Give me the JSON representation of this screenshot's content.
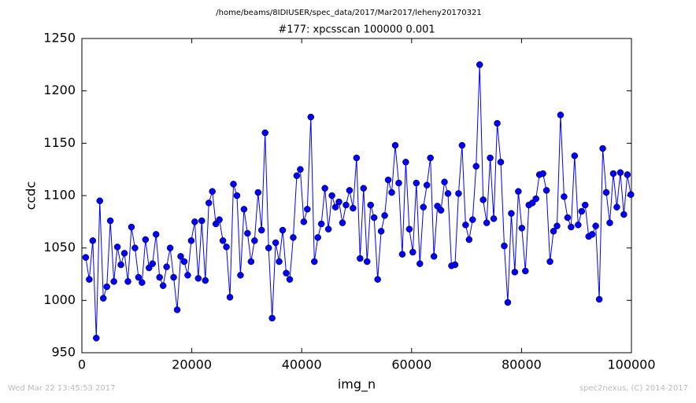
{
  "chart_data": {
    "type": "line",
    "suptitle": "/home/beams/8IDIUSER/spec_data/2017/Mar2017/leheny20170321",
    "title": "#177: xpcsscan 100000 0.001",
    "xlabel": "img_n",
    "ylabel": "ccdc",
    "footer_left": "Wed Mar 22 13:45:53 2017",
    "footer_right": "spec2nexus, (C) 2014-2017",
    "color": "#0000ff",
    "marker": "o",
    "xlim": [
      0,
      100000
    ],
    "xticks": [
      0,
      20000,
      40000,
      60000,
      80000,
      100000
    ],
    "ylim": [
      950,
      1250
    ],
    "yticks": [
      950,
      1000,
      1050,
      1100,
      1150,
      1200,
      1250
    ],
    "x": [
      700,
      1340,
      1980,
      2620,
      3260,
      3900,
      4540,
      5180,
      5820,
      6460,
      7100,
      7740,
      8380,
      9020,
      9660,
      10300,
      10940,
      11580,
      12220,
      12860,
      13500,
      14140,
      14780,
      15420,
      16060,
      16700,
      17340,
      17980,
      18620,
      19260,
      19900,
      20540,
      21180,
      21820,
      22460,
      23100,
      23740,
      24380,
      25020,
      25660,
      26300,
      26940,
      27580,
      28220,
      28860,
      29500,
      30140,
      30780,
      31420,
      32060,
      32700,
      33340,
      33980,
      34620,
      35260,
      35900,
      36540,
      37180,
      37820,
      38460,
      39100,
      39740,
      40380,
      41020,
      41660,
      42300,
      42940,
      43580,
      44220,
      44860,
      45500,
      46140,
      46780,
      47420,
      48060,
      48700,
      49340,
      49980,
      50620,
      51260,
      51900,
      52540,
      53180,
      53820,
      54460,
      55100,
      55740,
      56380,
      57020,
      57660,
      58300,
      58940,
      59580,
      60220,
      60860,
      61500,
      62140,
      62780,
      63420,
      64060,
      64700,
      65340,
      65980,
      66620,
      67260,
      67900,
      68540,
      69180,
      69820,
      70460,
      71100,
      71740,
      72380,
      73020,
      73660,
      74300,
      74940,
      75580,
      76220,
      76860,
      77500,
      78140,
      78780,
      79420,
      80060,
      80700,
      81340,
      81980,
      82620,
      83260,
      83900,
      84540,
      85180,
      85820,
      86460,
      87100,
      87740,
      88380,
      89020,
      89660,
      90300,
      90940,
      91580,
      92220,
      92860,
      93500,
      94140,
      94780,
      95420,
      96060,
      96700,
      97340,
      97980,
      98620,
      99260,
      99900
    ],
    "values": [
      1041,
      1020,
      1057,
      964,
      1095,
      1002,
      1013,
      1076,
      1018,
      1051,
      1034,
      1045,
      1018,
      1070,
      1050,
      1022,
      1017,
      1058,
      1031,
      1035,
      1063,
      1022,
      1014,
      1032,
      1050,
      1022,
      991,
      1042,
      1037,
      1024,
      1057,
      1075,
      1021,
      1076,
      1019,
      1093,
      1104,
      1073,
      1077,
      1057,
      1051,
      1003,
      1111,
      1100,
      1024,
      1087,
      1064,
      1037,
      1057,
      1103,
      1067,
      1160,
      1050,
      983,
      1055,
      1037,
      1067,
      1026,
      1020,
      1060,
      1119,
      1125,
      1075,
      1087,
      1175,
      1037,
      1060,
      1073,
      1107,
      1068,
      1100,
      1089,
      1094,
      1074,
      1091,
      1105,
      1088,
      1136,
      1040,
      1107,
      1037,
      1091,
      1079,
      1020,
      1066,
      1081,
      1115,
      1103,
      1148,
      1112,
      1044,
      1132,
      1068,
      1046,
      1112,
      1035,
      1089,
      1110,
      1136,
      1042,
      1090,
      1086,
      1113,
      1102,
      1033,
      1034,
      1102,
      1148,
      1072,
      1058,
      1077,
      1128,
      1225,
      1096,
      1074,
      1136,
      1078,
      1169,
      1132,
      1052,
      998,
      1083,
      1027,
      1104,
      1069,
      1028,
      1091,
      1093,
      1097,
      1120,
      1121,
      1105,
      1037,
      1066,
      1071,
      1177,
      1099,
      1079,
      1070,
      1138,
      1072,
      1085,
      1091,
      1061,
      1063,
      1071,
      1001,
      1145,
      1103,
      1074,
      1121,
      1089,
      1122,
      1082,
      1120,
      1101
    ]
  }
}
